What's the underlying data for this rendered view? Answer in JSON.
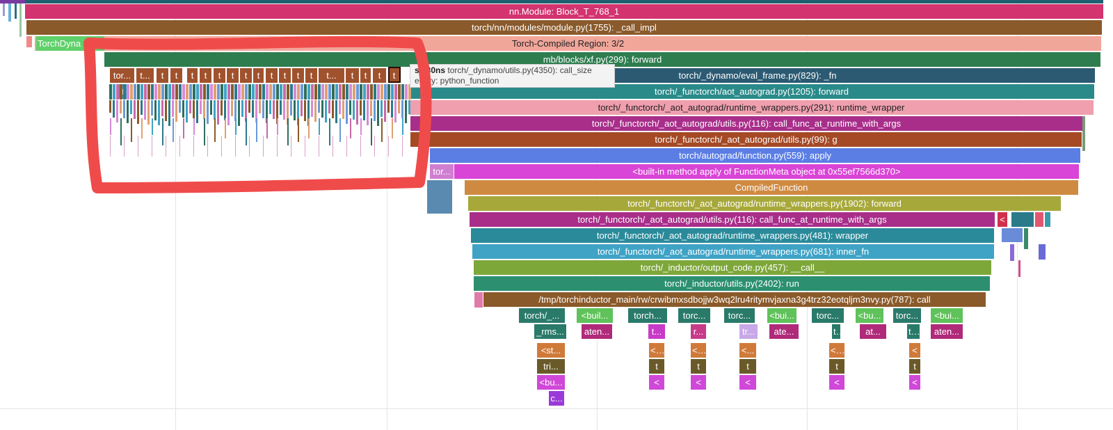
{
  "frames": [
    {
      "label": "nn.Module: Block_T_768_1",
      "color": "#d3336f"
    },
    {
      "label": "torch/nn/modules/module.py(1755): _call_impl",
      "color": "#8a5a2b"
    },
    {
      "label": "Torch-Compiled Region: 3/2",
      "color": "#f1a69a",
      "text_color": "#222"
    },
    {
      "label": "mb/blocks/xf.py(299): forward",
      "color": "#2e7d4f"
    },
    {
      "label": "torch/_dynamo/eval_frame.py(829): _fn",
      "color": "#2b5a72"
    },
    {
      "label": "torch/_functorch/aot_autograd.py(1205): forward",
      "color": "#2a8a8a"
    },
    {
      "label": "torch/_functorch/_aot_autograd/runtime_wrappers.py(291): runtime_wrapper",
      "color": "#ef9fae",
      "text_color": "#222"
    },
    {
      "label": "torch/_functorch/_aot_autograd/utils.py(116): call_func_at_runtime_with_args",
      "color": "#a82e8a"
    },
    {
      "label": "torch/_functorch/_aot_autograd/utils.py(99): g",
      "color": "#a54a25"
    },
    {
      "label": "torch/autograd/function.py(559): apply",
      "color": "#5b7ee5"
    },
    {
      "label": "<built-in method apply of FunctionMeta object at 0x55ef7566d370>",
      "color": "#d945d6"
    },
    {
      "label": "CompiledFunction",
      "color": "#cf8a42"
    },
    {
      "label": "torch/_functorch/_aot_autograd/runtime_wrappers.py(1902): forward",
      "color": "#a7a83a"
    },
    {
      "label": "torch/_functorch/_aot_autograd/utils.py(116): call_func_at_runtime_with_args",
      "color": "#a82e8a"
    },
    {
      "label": "torch/_functorch/_aot_autograd/runtime_wrappers.py(481): wrapper",
      "color": "#2a8a9a"
    },
    {
      "label": "torch/_functorch/_aot_autograd/runtime_wrappers.py(681): inner_fn",
      "color": "#3fa3c6"
    },
    {
      "label": "torch/_inductor/output_code.py(457): __call__",
      "color": "#7ea73a"
    },
    {
      "label": "torch/_inductor/utils.py(2402): run",
      "color": "#2c9070"
    },
    {
      "label": "/tmp/torchinductor_main/rw/crwibmxsdbojjw3wq2lru4ritymvjaxna3g4trz32eotqljm3nvy.py(787): call",
      "color": "#8b5a2a"
    }
  ],
  "side_frames": {
    "torch_dynamo": "TorchDyna",
    "tor_small": "tor...",
    "red_small": "<"
  },
  "row18_labels": [
    "torch/_...",
    "<buil...",
    "torch...",
    "torc...",
    "torc...",
    "<bui...",
    "torc...",
    "<bu...",
    "torc...",
    "<bui..."
  ],
  "row19_labels": [
    "_rms...",
    "aten...",
    "t...",
    "r...",
    "tr...",
    "ate...",
    "t...",
    "at...",
    "t...",
    "aten..."
  ],
  "row20_labels": [
    "<st...",
    "<...",
    "<...",
    "<...",
    "<...",
    "<"
  ],
  "row21_labels": [
    "tri...",
    "t",
    "t",
    "t",
    "t",
    "t"
  ],
  "row22_labels": [
    "<bu...",
    "<",
    "<",
    "<",
    "<",
    "<"
  ],
  "row23_label": "c...",
  "sub_region_labels": [
    "tor...",
    "t...",
    "t",
    "t",
    "t",
    "t",
    "t",
    "t",
    "t",
    "t",
    "t",
    "t",
    "t",
    "t",
    "t...",
    "t",
    "t",
    "t",
    "t"
  ],
  "sub_region_child_label": "t",
  "tooltip": {
    "duration": "s 730ns",
    "name": "torch/_dynamo/utils.py(4350): call_size",
    "category": "egory: python_function"
  }
}
